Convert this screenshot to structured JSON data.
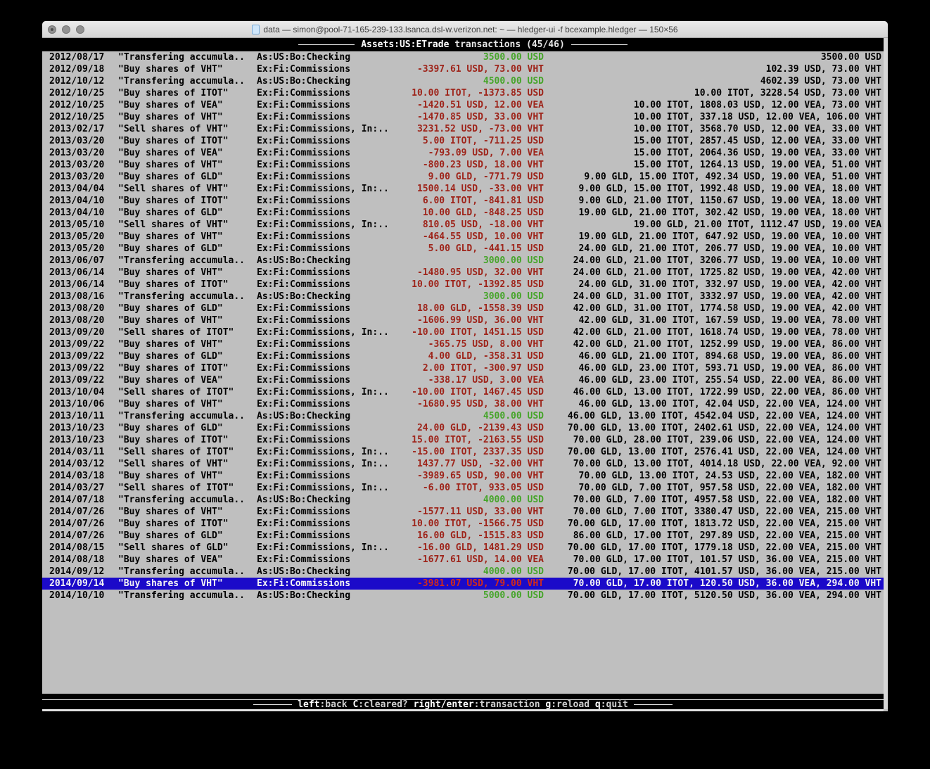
{
  "window": {
    "title": "data — simon@pool-71-165-239-133.lsanca.dsl-w.verizon.net: ~ — hledger-ui -f bcexample.hledger — 150×56"
  },
  "header": {
    "account": "Assets:US:ETrade",
    "suffix": "transactions (45/46)"
  },
  "footer": {
    "keys": [
      {
        "key": "left",
        "desc": ":back"
      },
      {
        "key": "C",
        "desc": ":cleared?"
      },
      {
        "key": "right/enter",
        "desc": ":transaction"
      },
      {
        "key": "g",
        "desc": ":reload"
      },
      {
        "key": "q",
        "desc": ":quit"
      }
    ]
  },
  "colors": {
    "terminal_bg": "#bfbfbf",
    "bar_bg": "#000000",
    "negative_amount": "#9e241a",
    "positive_amount": "#46a52a",
    "selection_bg": "#1b0ac9"
  },
  "register": {
    "rows": [
      {
        "date": "2012/08/17",
        "description": "\"Transfering accumula..",
        "account": "As:US:Bo:Checking",
        "change": "3500.00 USD",
        "change_color": "pos",
        "balance": "3500.00 USD",
        "selected": false
      },
      {
        "date": "2012/09/18",
        "description": "\"Buy shares of VHT\"",
        "account": "Ex:Fi:Commissions",
        "change": "-3397.61 USD, 73.00 VHT",
        "change_color": "neg",
        "balance": "102.39 USD, 73.00 VHT",
        "selected": false
      },
      {
        "date": "2012/10/12",
        "description": "\"Transfering accumula..",
        "account": "As:US:Bo:Checking",
        "change": "4500.00 USD",
        "change_color": "pos",
        "balance": "4602.39 USD, 73.00 VHT",
        "selected": false
      },
      {
        "date": "2012/10/25",
        "description": "\"Buy shares of ITOT\"",
        "account": "Ex:Fi:Commissions",
        "change": "10.00 ITOT, -1373.85 USD",
        "change_color": "neg",
        "balance": "10.00 ITOT, 3228.54 USD, 73.00 VHT",
        "selected": false
      },
      {
        "date": "2012/10/25",
        "description": "\"Buy shares of VEA\"",
        "account": "Ex:Fi:Commissions",
        "change": "-1420.51 USD, 12.00 VEA",
        "change_color": "neg",
        "balance": "10.00 ITOT, 1808.03 USD, 12.00 VEA, 73.00 VHT",
        "selected": false
      },
      {
        "date": "2012/10/25",
        "description": "\"Buy shares of VHT\"",
        "account": "Ex:Fi:Commissions",
        "change": "-1470.85 USD, 33.00 VHT",
        "change_color": "neg",
        "balance": "10.00 ITOT, 337.18 USD, 12.00 VEA, 106.00 VHT",
        "selected": false
      },
      {
        "date": "2013/02/17",
        "description": "\"Sell shares of VHT\"",
        "account": "Ex:Fi:Commissions, In:..",
        "change": "3231.52 USD, -73.00 VHT",
        "change_color": "neg",
        "balance": "10.00 ITOT, 3568.70 USD, 12.00 VEA, 33.00 VHT",
        "selected": false
      },
      {
        "date": "2013/03/20",
        "description": "\"Buy shares of ITOT\"",
        "account": "Ex:Fi:Commissions",
        "change": "5.00 ITOT, -711.25 USD",
        "change_color": "neg",
        "balance": "15.00 ITOT, 2857.45 USD, 12.00 VEA, 33.00 VHT",
        "selected": false
      },
      {
        "date": "2013/03/20",
        "description": "\"Buy shares of VEA\"",
        "account": "Ex:Fi:Commissions",
        "change": "-793.09 USD, 7.00 VEA",
        "change_color": "neg",
        "balance": "15.00 ITOT, 2064.36 USD, 19.00 VEA, 33.00 VHT",
        "selected": false
      },
      {
        "date": "2013/03/20",
        "description": "\"Buy shares of VHT\"",
        "account": "Ex:Fi:Commissions",
        "change": "-800.23 USD, 18.00 VHT",
        "change_color": "neg",
        "balance": "15.00 ITOT, 1264.13 USD, 19.00 VEA, 51.00 VHT",
        "selected": false
      },
      {
        "date": "2013/03/20",
        "description": "\"Buy shares of GLD\"",
        "account": "Ex:Fi:Commissions",
        "change": "9.00 GLD, -771.79 USD",
        "change_color": "neg",
        "balance": "9.00 GLD, 15.00 ITOT, 492.34 USD, 19.00 VEA, 51.00 VHT",
        "selected": false
      },
      {
        "date": "2013/04/04",
        "description": "\"Sell shares of VHT\"",
        "account": "Ex:Fi:Commissions, In:..",
        "change": "1500.14 USD, -33.00 VHT",
        "change_color": "neg",
        "balance": "9.00 GLD, 15.00 ITOT, 1992.48 USD, 19.00 VEA, 18.00 VHT",
        "selected": false
      },
      {
        "date": "2013/04/10",
        "description": "\"Buy shares of ITOT\"",
        "account": "Ex:Fi:Commissions",
        "change": "6.00 ITOT, -841.81 USD",
        "change_color": "neg",
        "balance": "9.00 GLD, 21.00 ITOT, 1150.67 USD, 19.00 VEA, 18.00 VHT",
        "selected": false
      },
      {
        "date": "2013/04/10",
        "description": "\"Buy shares of GLD\"",
        "account": "Ex:Fi:Commissions",
        "change": "10.00 GLD, -848.25 USD",
        "change_color": "neg",
        "balance": "19.00 GLD, 21.00 ITOT, 302.42 USD, 19.00 VEA, 18.00 VHT",
        "selected": false
      },
      {
        "date": "2013/05/10",
        "description": "\"Sell shares of VHT\"",
        "account": "Ex:Fi:Commissions, In:..",
        "change": "810.05 USD, -18.00 VHT",
        "change_color": "neg",
        "balance": "19.00 GLD, 21.00 ITOT, 1112.47 USD, 19.00 VEA",
        "selected": false
      },
      {
        "date": "2013/05/20",
        "description": "\"Buy shares of VHT\"",
        "account": "Ex:Fi:Commissions",
        "change": "-464.55 USD, 10.00 VHT",
        "change_color": "neg",
        "balance": "19.00 GLD, 21.00 ITOT, 647.92 USD, 19.00 VEA, 10.00 VHT",
        "selected": false
      },
      {
        "date": "2013/05/20",
        "description": "\"Buy shares of GLD\"",
        "account": "Ex:Fi:Commissions",
        "change": "5.00 GLD, -441.15 USD",
        "change_color": "neg",
        "balance": "24.00 GLD, 21.00 ITOT, 206.77 USD, 19.00 VEA, 10.00 VHT",
        "selected": false
      },
      {
        "date": "2013/06/07",
        "description": "\"Transfering accumula..",
        "account": "As:US:Bo:Checking",
        "change": "3000.00 USD",
        "change_color": "pos",
        "balance": "24.00 GLD, 21.00 ITOT, 3206.77 USD, 19.00 VEA, 10.00 VHT",
        "selected": false
      },
      {
        "date": "2013/06/14",
        "description": "\"Buy shares of VHT\"",
        "account": "Ex:Fi:Commissions",
        "change": "-1480.95 USD, 32.00 VHT",
        "change_color": "neg",
        "balance": "24.00 GLD, 21.00 ITOT, 1725.82 USD, 19.00 VEA, 42.00 VHT",
        "selected": false
      },
      {
        "date": "2013/06/14",
        "description": "\"Buy shares of ITOT\"",
        "account": "Ex:Fi:Commissions",
        "change": "10.00 ITOT, -1392.85 USD",
        "change_color": "neg",
        "balance": "24.00 GLD, 31.00 ITOT, 332.97 USD, 19.00 VEA, 42.00 VHT",
        "selected": false
      },
      {
        "date": "2013/08/16",
        "description": "\"Transfering accumula..",
        "account": "As:US:Bo:Checking",
        "change": "3000.00 USD",
        "change_color": "pos",
        "balance": "24.00 GLD, 31.00 ITOT, 3332.97 USD, 19.00 VEA, 42.00 VHT",
        "selected": false
      },
      {
        "date": "2013/08/20",
        "description": "\"Buy shares of GLD\"",
        "account": "Ex:Fi:Commissions",
        "change": "18.00 GLD, -1558.39 USD",
        "change_color": "neg",
        "balance": "42.00 GLD, 31.00 ITOT, 1774.58 USD, 19.00 VEA, 42.00 VHT",
        "selected": false
      },
      {
        "date": "2013/08/20",
        "description": "\"Buy shares of VHT\"",
        "account": "Ex:Fi:Commissions",
        "change": "-1606.99 USD, 36.00 VHT",
        "change_color": "neg",
        "balance": "42.00 GLD, 31.00 ITOT, 167.59 USD, 19.00 VEA, 78.00 VHT",
        "selected": false
      },
      {
        "date": "2013/09/20",
        "description": "\"Sell shares of ITOT\"",
        "account": "Ex:Fi:Commissions, In:..",
        "change": "-10.00 ITOT, 1451.15 USD",
        "change_color": "neg",
        "balance": "42.00 GLD, 21.00 ITOT, 1618.74 USD, 19.00 VEA, 78.00 VHT",
        "selected": false
      },
      {
        "date": "2013/09/22",
        "description": "\"Buy shares of VHT\"",
        "account": "Ex:Fi:Commissions",
        "change": "-365.75 USD, 8.00 VHT",
        "change_color": "neg",
        "balance": "42.00 GLD, 21.00 ITOT, 1252.99 USD, 19.00 VEA, 86.00 VHT",
        "selected": false
      },
      {
        "date": "2013/09/22",
        "description": "\"Buy shares of GLD\"",
        "account": "Ex:Fi:Commissions",
        "change": "4.00 GLD, -358.31 USD",
        "change_color": "neg",
        "balance": "46.00 GLD, 21.00 ITOT, 894.68 USD, 19.00 VEA, 86.00 VHT",
        "selected": false
      },
      {
        "date": "2013/09/22",
        "description": "\"Buy shares of ITOT\"",
        "account": "Ex:Fi:Commissions",
        "change": "2.00 ITOT, -300.97 USD",
        "change_color": "neg",
        "balance": "46.00 GLD, 23.00 ITOT, 593.71 USD, 19.00 VEA, 86.00 VHT",
        "selected": false
      },
      {
        "date": "2013/09/22",
        "description": "\"Buy shares of VEA\"",
        "account": "Ex:Fi:Commissions",
        "change": "-338.17 USD, 3.00 VEA",
        "change_color": "neg",
        "balance": "46.00 GLD, 23.00 ITOT, 255.54 USD, 22.00 VEA, 86.00 VHT",
        "selected": false
      },
      {
        "date": "2013/10/04",
        "description": "\"Sell shares of ITOT\"",
        "account": "Ex:Fi:Commissions, In:..",
        "change": "-10.00 ITOT, 1467.45 USD",
        "change_color": "neg",
        "balance": "46.00 GLD, 13.00 ITOT, 1722.99 USD, 22.00 VEA, 86.00 VHT",
        "selected": false
      },
      {
        "date": "2013/10/06",
        "description": "\"Buy shares of VHT\"",
        "account": "Ex:Fi:Commissions",
        "change": "-1680.95 USD, 38.00 VHT",
        "change_color": "neg",
        "balance": "46.00 GLD, 13.00 ITOT, 42.04 USD, 22.00 VEA, 124.00 VHT",
        "selected": false
      },
      {
        "date": "2013/10/11",
        "description": "\"Transfering accumula..",
        "account": "As:US:Bo:Checking",
        "change": "4500.00 USD",
        "change_color": "pos",
        "balance": "46.00 GLD, 13.00 ITOT, 4542.04 USD, 22.00 VEA, 124.00 VHT",
        "selected": false
      },
      {
        "date": "2013/10/23",
        "description": "\"Buy shares of GLD\"",
        "account": "Ex:Fi:Commissions",
        "change": "24.00 GLD, -2139.43 USD",
        "change_color": "neg",
        "balance": "70.00 GLD, 13.00 ITOT, 2402.61 USD, 22.00 VEA, 124.00 VHT",
        "selected": false
      },
      {
        "date": "2013/10/23",
        "description": "\"Buy shares of ITOT\"",
        "account": "Ex:Fi:Commissions",
        "change": "15.00 ITOT, -2163.55 USD",
        "change_color": "neg",
        "balance": "70.00 GLD, 28.00 ITOT, 239.06 USD, 22.00 VEA, 124.00 VHT",
        "selected": false
      },
      {
        "date": "2014/03/11",
        "description": "\"Sell shares of ITOT\"",
        "account": "Ex:Fi:Commissions, In:..",
        "change": "-15.00 ITOT, 2337.35 USD",
        "change_color": "neg",
        "balance": "70.00 GLD, 13.00 ITOT, 2576.41 USD, 22.00 VEA, 124.00 VHT",
        "selected": false
      },
      {
        "date": "2014/03/12",
        "description": "\"Sell shares of VHT\"",
        "account": "Ex:Fi:Commissions, In:..",
        "change": "1437.77 USD, -32.00 VHT",
        "change_color": "neg",
        "balance": "70.00 GLD, 13.00 ITOT, 4014.18 USD, 22.00 VEA, 92.00 VHT",
        "selected": false
      },
      {
        "date": "2014/03/18",
        "description": "\"Buy shares of VHT\"",
        "account": "Ex:Fi:Commissions",
        "change": "-3989.65 USD, 90.00 VHT",
        "change_color": "neg",
        "balance": "70.00 GLD, 13.00 ITOT, 24.53 USD, 22.00 VEA, 182.00 VHT",
        "selected": false
      },
      {
        "date": "2014/03/27",
        "description": "\"Sell shares of ITOT\"",
        "account": "Ex:Fi:Commissions, In:..",
        "change": "-6.00 ITOT, 933.05 USD",
        "change_color": "neg",
        "balance": "70.00 GLD, 7.00 ITOT, 957.58 USD, 22.00 VEA, 182.00 VHT",
        "selected": false
      },
      {
        "date": "2014/07/18",
        "description": "\"Transfering accumula..",
        "account": "As:US:Bo:Checking",
        "change": "4000.00 USD",
        "change_color": "pos",
        "balance": "70.00 GLD, 7.00 ITOT, 4957.58 USD, 22.00 VEA, 182.00 VHT",
        "selected": false
      },
      {
        "date": "2014/07/26",
        "description": "\"Buy shares of VHT\"",
        "account": "Ex:Fi:Commissions",
        "change": "-1577.11 USD, 33.00 VHT",
        "change_color": "neg",
        "balance": "70.00 GLD, 7.00 ITOT, 3380.47 USD, 22.00 VEA, 215.00 VHT",
        "selected": false
      },
      {
        "date": "2014/07/26",
        "description": "\"Buy shares of ITOT\"",
        "account": "Ex:Fi:Commissions",
        "change": "10.00 ITOT, -1566.75 USD",
        "change_color": "neg",
        "balance": "70.00 GLD, 17.00 ITOT, 1813.72 USD, 22.00 VEA, 215.00 VHT",
        "selected": false
      },
      {
        "date": "2014/07/26",
        "description": "\"Buy shares of GLD\"",
        "account": "Ex:Fi:Commissions",
        "change": "16.00 GLD, -1515.83 USD",
        "change_color": "neg",
        "balance": "86.00 GLD, 17.00 ITOT, 297.89 USD, 22.00 VEA, 215.00 VHT",
        "selected": false
      },
      {
        "date": "2014/08/15",
        "description": "\"Sell shares of GLD\"",
        "account": "Ex:Fi:Commissions, In:..",
        "change": "-16.00 GLD, 1481.29 USD",
        "change_color": "neg",
        "balance": "70.00 GLD, 17.00 ITOT, 1779.18 USD, 22.00 VEA, 215.00 VHT",
        "selected": false
      },
      {
        "date": "2014/08/18",
        "description": "\"Buy shares of VEA\"",
        "account": "Ex:Fi:Commissions",
        "change": "-1677.61 USD, 14.00 VEA",
        "change_color": "neg",
        "balance": "70.00 GLD, 17.00 ITOT, 101.57 USD, 36.00 VEA, 215.00 VHT",
        "selected": false
      },
      {
        "date": "2014/09/12",
        "description": "\"Transfering accumula..",
        "account": "As:US:Bo:Checking",
        "change": "4000.00 USD",
        "change_color": "pos",
        "balance": "70.00 GLD, 17.00 ITOT, 4101.57 USD, 36.00 VEA, 215.00 VHT",
        "selected": false
      },
      {
        "date": "2014/09/14",
        "description": "\"Buy shares of VHT\"",
        "account": "Ex:Fi:Commissions",
        "change": "-3981.07 USD, 79.00 VHT",
        "change_color": "neg",
        "balance": "70.00 GLD, 17.00 ITOT, 120.50 USD, 36.00 VEA, 294.00 VHT",
        "selected": true
      },
      {
        "date": "2014/10/10",
        "description": "\"Transfering accumula..",
        "account": "As:US:Bo:Checking",
        "change": "5000.00 USD",
        "change_color": "pos",
        "balance": "70.00 GLD, 17.00 ITOT, 5120.50 USD, 36.00 VEA, 294.00 VHT",
        "selected": false
      }
    ]
  }
}
